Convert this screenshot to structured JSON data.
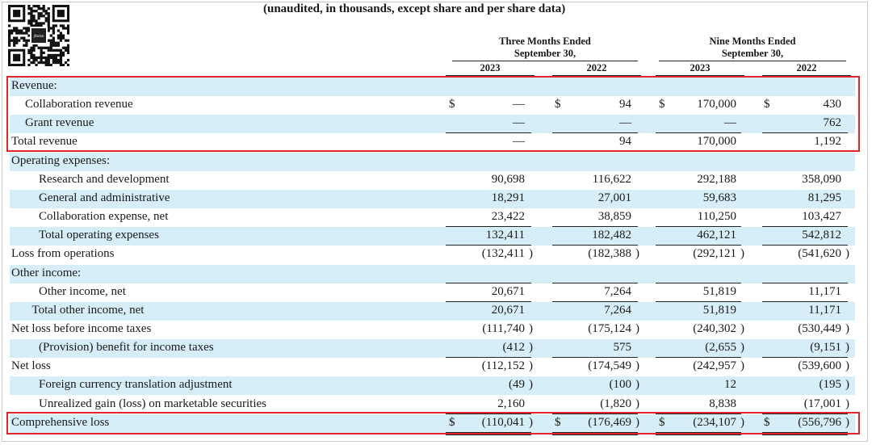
{
  "subtitle": "(unaudited, in thousands, except share and per share data)",
  "qr_code": {
    "icon": "qr-code-icon",
    "center_label": "Jitwise"
  },
  "headers": {
    "three_months": {
      "line1": "Three Months Ended",
      "line2": "September 30,"
    },
    "nine_months": {
      "line1": "Nine Months Ended",
      "line2": "September 30,"
    },
    "years": [
      "2023",
      "2022",
      "2023",
      "2022"
    ]
  },
  "rows": [
    {
      "label": "Revenue:",
      "indent": 0,
      "shade": true,
      "cells": [
        "",
        "",
        "",
        ""
      ],
      "dollars": [
        false,
        false,
        false,
        false
      ],
      "close": [
        false,
        false,
        false,
        false
      ]
    },
    {
      "label": "Collaboration revenue",
      "indent": 1,
      "shade": false,
      "cells": [
        "—",
        "94",
        "170,000",
        "430"
      ],
      "dollars": [
        true,
        true,
        true,
        true
      ],
      "close": [
        false,
        false,
        false,
        false
      ]
    },
    {
      "label": "Grant revenue",
      "indent": 1,
      "shade": true,
      "cells": [
        "—",
        "—",
        "—",
        "762"
      ],
      "dollars": [
        false,
        false,
        false,
        false
      ],
      "close": [
        false,
        false,
        false,
        false
      ]
    },
    {
      "label": "Total revenue",
      "indent": 0,
      "shade": false,
      "cells": [
        "—",
        "94",
        "170,000",
        "1,192"
      ],
      "dollars": [
        false,
        false,
        false,
        false
      ],
      "close": [
        false,
        false,
        false,
        false
      ]
    },
    {
      "label": "Operating expenses:",
      "indent": 0,
      "shade": true,
      "cells": [
        "",
        "",
        "",
        ""
      ],
      "dollars": [
        false,
        false,
        false,
        false
      ],
      "close": [
        false,
        false,
        false,
        false
      ]
    },
    {
      "label": "Research and development",
      "indent": 2,
      "shade": false,
      "cells": [
        "90,698",
        "116,622",
        "292,188",
        "358,090"
      ],
      "dollars": [
        false,
        false,
        false,
        false
      ],
      "close": [
        false,
        false,
        false,
        false
      ]
    },
    {
      "label": "General and administrative",
      "indent": 2,
      "shade": true,
      "cells": [
        "18,291",
        "27,001",
        "59,683",
        "81,295"
      ],
      "dollars": [
        false,
        false,
        false,
        false
      ],
      "close": [
        false,
        false,
        false,
        false
      ]
    },
    {
      "label": "Collaboration expense, net",
      "indent": 2,
      "shade": false,
      "cells": [
        "23,422",
        "38,859",
        "110,250",
        "103,427"
      ],
      "dollars": [
        false,
        false,
        false,
        false
      ],
      "close": [
        false,
        false,
        false,
        false
      ]
    },
    {
      "label": "Total operating expenses",
      "indent": 2,
      "shade": true,
      "cells": [
        "132,411",
        "182,482",
        "462,121",
        "542,812"
      ],
      "dollars": [
        false,
        false,
        false,
        false
      ],
      "close": [
        false,
        false,
        false,
        false
      ]
    },
    {
      "label": "Loss from operations",
      "indent": 0,
      "shade": false,
      "cells": [
        "(132,411",
        "(182,388",
        "(292,121",
        "(541,620"
      ],
      "dollars": [
        false,
        false,
        false,
        false
      ],
      "close": [
        true,
        true,
        true,
        true
      ]
    },
    {
      "label": "Other income:",
      "indent": 0,
      "shade": true,
      "cells": [
        "",
        "",
        "",
        ""
      ],
      "dollars": [
        false,
        false,
        false,
        false
      ],
      "close": [
        false,
        false,
        false,
        false
      ]
    },
    {
      "label": "Other income, net",
      "indent": 2,
      "shade": false,
      "cells": [
        "20,671",
        "7,264",
        "51,819",
        "11,171"
      ],
      "dollars": [
        false,
        false,
        false,
        false
      ],
      "close": [
        false,
        false,
        false,
        false
      ]
    },
    {
      "label": "Total other income, net",
      "indent": 1.5,
      "shade": true,
      "cells": [
        "20,671",
        "7,264",
        "51,819",
        "11,171"
      ],
      "dollars": [
        false,
        false,
        false,
        false
      ],
      "close": [
        false,
        false,
        false,
        false
      ]
    },
    {
      "label": "Net loss before income taxes",
      "indent": 0,
      "shade": false,
      "cells": [
        "(111,740",
        "(175,124",
        "(240,302",
        "(530,449"
      ],
      "dollars": [
        false,
        false,
        false,
        false
      ],
      "close": [
        true,
        true,
        true,
        true
      ]
    },
    {
      "label": "(Provision) benefit for income taxes",
      "indent": 2,
      "shade": true,
      "cells": [
        "(412",
        "575",
        "(2,655",
        "(9,151"
      ],
      "dollars": [
        false,
        false,
        false,
        false
      ],
      "close": [
        true,
        false,
        true,
        true
      ]
    },
    {
      "label": "Net loss",
      "indent": 0,
      "shade": false,
      "cells": [
        "(112,152",
        "(174,549",
        "(242,957",
        "(539,600"
      ],
      "dollars": [
        false,
        false,
        false,
        false
      ],
      "close": [
        true,
        true,
        true,
        true
      ]
    },
    {
      "label": "Foreign currency translation adjustment",
      "indent": 2,
      "shade": true,
      "cells": [
        "(49",
        "(100",
        "12",
        "(195"
      ],
      "dollars": [
        false,
        false,
        false,
        false
      ],
      "close": [
        true,
        true,
        false,
        true
      ]
    },
    {
      "label": "Unrealized gain (loss) on marketable securities",
      "indent": 2,
      "shade": false,
      "cells": [
        "2,160",
        "(1,820",
        "8,838",
        "(17,001"
      ],
      "dollars": [
        false,
        false,
        false,
        false
      ],
      "close": [
        false,
        true,
        false,
        true
      ]
    },
    {
      "label": "Comprehensive loss",
      "indent": 0,
      "shade": true,
      "cells": [
        "(110,041",
        "(176,469",
        "(234,107",
        "(556,796"
      ],
      "dollars": [
        true,
        true,
        true,
        true
      ],
      "close": [
        true,
        true,
        true,
        true
      ]
    }
  ],
  "dollar_sign": "$",
  "close_paren": ")",
  "highlight_color": "#e3262b",
  "shade_color": "#d6eef8"
}
